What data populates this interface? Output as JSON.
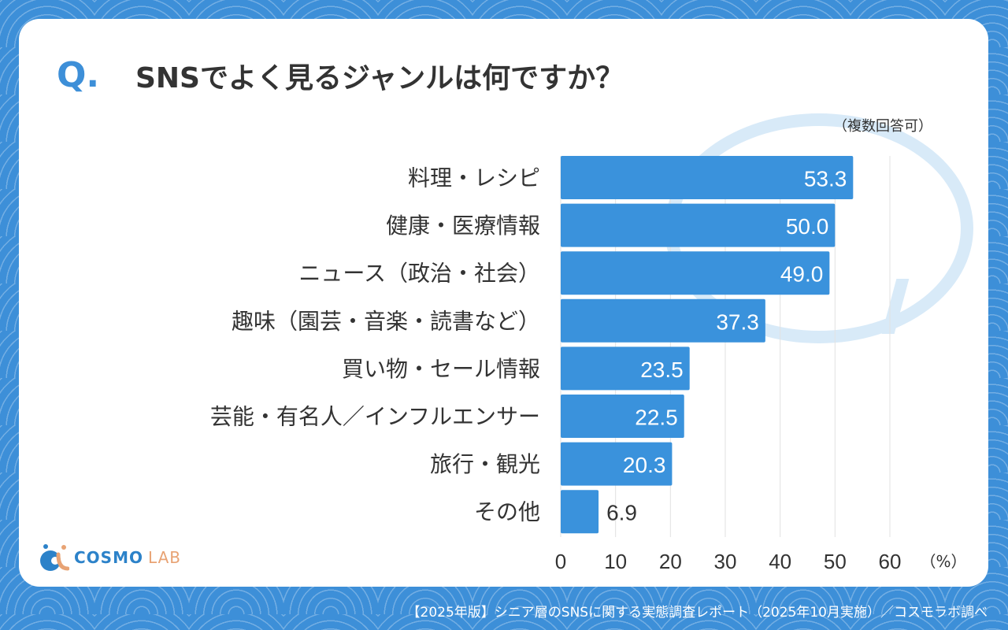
{
  "header": {
    "q_mark": "Q.",
    "title": "SNSでよく見るジャンルは何ですか？",
    "note": "（複数回答可）"
  },
  "footer": {
    "source": "【2025年版】シニア層のSNSに関する実態調査レポート（2025年10月実施）／コスモラボ調べ"
  },
  "logo": {
    "text1": "COSMO",
    "text2": "LAB"
  },
  "colors": {
    "bar": "#3a92dc",
    "background": "#3d8fd8",
    "accent": "#3d8fd8"
  },
  "chart_data": {
    "type": "bar",
    "orientation": "horizontal",
    "categories": [
      "料理・レシピ",
      "健康・医療情報",
      "ニュース（政治・社会）",
      "趣味（園芸・音楽・読書など）",
      "買い物・セール情報",
      "芸能・有名人／インフルエンサー",
      "旅行・観光",
      "その他"
    ],
    "values": [
      53.3,
      50.0,
      49.0,
      37.3,
      23.5,
      22.5,
      20.3,
      6.9
    ],
    "value_labels": [
      "53.3",
      "50.0",
      "49.0",
      "37.3",
      "23.5",
      "22.5",
      "20.3",
      "6.9"
    ],
    "xlim": [
      0,
      60
    ],
    "xticks": [
      "0",
      "10",
      "20",
      "30",
      "40",
      "50",
      "60"
    ],
    "xunit": "（%）",
    "grid": true
  }
}
